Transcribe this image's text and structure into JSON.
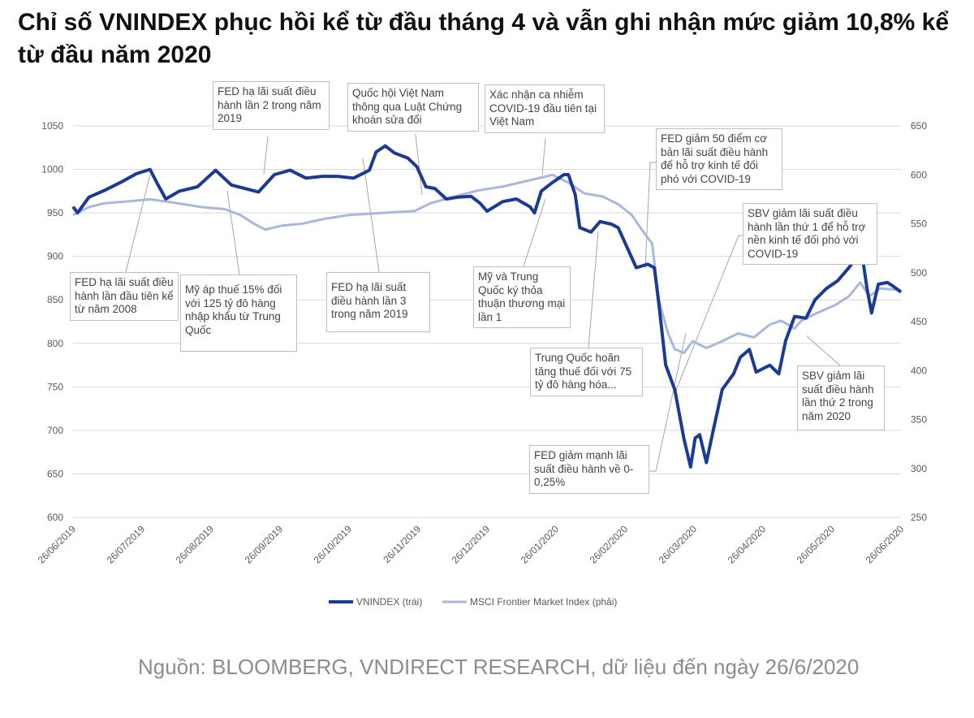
{
  "title": "Chỉ số VNINDEX phục hồi kể từ đầu tháng 4 và vẫn ghi nhận mức giảm 10,8% kể từ đầu năm 2020",
  "source": "Nguồn: BLOOMBERG, VNDIRECT RESEARCH, dữ liệu đến ngày 26/6/2020",
  "colors": {
    "vnindex": "#1b3a93",
    "msci": "#aab6dc",
    "grid": "#d9d9d9"
  },
  "chart_data": {
    "type": "line",
    "title": "",
    "grid": true,
    "legend_placement": "bottom",
    "y_left": {
      "ticks": [
        600,
        650,
        700,
        750,
        800,
        850,
        900,
        950,
        1000,
        1050
      ],
      "range": [
        600,
        1050
      ]
    },
    "y_right": {
      "ticks": [
        250,
        300,
        350,
        400,
        450,
        500,
        550,
        600,
        650
      ],
      "range": [
        250,
        650
      ]
    },
    "x_ticks": [
      "26/06/2019",
      "26/07/2019",
      "26/08/2019",
      "26/09/2019",
      "26/10/2019",
      "26/11/2019",
      "26/12/2019",
      "26/01/2020",
      "26/02/2020",
      "26/03/2020",
      "26/04/2020",
      "26/05/2020",
      "26/06/2020"
    ],
    "x_range": [
      "2019-06-26",
      "2020-06-26"
    ],
    "series": [
      {
        "name": "VNINDEX (trái)",
        "axis": "left",
        "points": [
          [
            "2019-06-26",
            957
          ],
          [
            "2019-06-28",
            950
          ],
          [
            "2019-07-03",
            968
          ],
          [
            "2019-07-10",
            976
          ],
          [
            "2019-07-17",
            985
          ],
          [
            "2019-07-24",
            995
          ],
          [
            "2019-07-30",
            1000
          ],
          [
            "2019-08-02",
            985
          ],
          [
            "2019-08-06",
            966
          ],
          [
            "2019-08-12",
            975
          ],
          [
            "2019-08-20",
            980
          ],
          [
            "2019-08-28",
            999
          ],
          [
            "2019-09-04",
            982
          ],
          [
            "2019-09-10",
            978
          ],
          [
            "2019-09-16",
            974
          ],
          [
            "2019-09-23",
            994
          ],
          [
            "2019-09-30",
            999
          ],
          [
            "2019-10-07",
            990
          ],
          [
            "2019-10-14",
            992
          ],
          [
            "2019-10-21",
            992
          ],
          [
            "2019-10-28",
            990
          ],
          [
            "2019-11-04",
            999
          ],
          [
            "2019-11-07",
            1020
          ],
          [
            "2019-11-11",
            1027
          ],
          [
            "2019-11-15",
            1019
          ],
          [
            "2019-11-21",
            1013
          ],
          [
            "2019-11-25",
            1003
          ],
          [
            "2019-11-29",
            980
          ],
          [
            "2019-12-03",
            978
          ],
          [
            "2019-12-08",
            966
          ],
          [
            "2019-12-13",
            968
          ],
          [
            "2019-12-19",
            969
          ],
          [
            "2019-12-23",
            961
          ],
          [
            "2019-12-26",
            952
          ],
          [
            "2020-01-02",
            963
          ],
          [
            "2020-01-08",
            966
          ],
          [
            "2020-01-14",
            957
          ],
          [
            "2020-01-16",
            950
          ],
          [
            "2020-01-19",
            975
          ],
          [
            "2020-01-24",
            985
          ],
          [
            "2020-01-29",
            994
          ],
          [
            "2020-01-31",
            994
          ],
          [
            "2020-02-03",
            971
          ],
          [
            "2020-02-05",
            933
          ],
          [
            "2020-02-10",
            928
          ],
          [
            "2020-02-14",
            940
          ],
          [
            "2020-02-19",
            937
          ],
          [
            "2020-02-22",
            933
          ],
          [
            "2020-02-26",
            910
          ],
          [
            "2020-03-01",
            887
          ],
          [
            "2020-03-06",
            891
          ],
          [
            "2020-03-09",
            887
          ],
          [
            "2020-03-11",
            845
          ],
          [
            "2020-03-14",
            775
          ],
          [
            "2020-03-18",
            747
          ],
          [
            "2020-03-22",
            691
          ],
          [
            "2020-03-25",
            658
          ],
          [
            "2020-03-27",
            691
          ],
          [
            "2020-03-29",
            695
          ],
          [
            "2020-04-01",
            663
          ],
          [
            "2020-04-04",
            700
          ],
          [
            "2020-04-08",
            747
          ],
          [
            "2020-04-13",
            765
          ],
          [
            "2020-04-16",
            784
          ],
          [
            "2020-04-20",
            793
          ],
          [
            "2020-04-23",
            767
          ],
          [
            "2020-04-29",
            775
          ],
          [
            "2020-05-03",
            765
          ],
          [
            "2020-05-06",
            803
          ],
          [
            "2020-05-10",
            831
          ],
          [
            "2020-05-15",
            829
          ],
          [
            "2020-05-19",
            850
          ],
          [
            "2020-05-24",
            863
          ],
          [
            "2020-05-29",
            872
          ],
          [
            "2020-06-03",
            887
          ],
          [
            "2020-06-07",
            901
          ],
          [
            "2020-06-09",
            899
          ],
          [
            "2020-06-11",
            863
          ],
          [
            "2020-06-13",
            835
          ],
          [
            "2020-06-16",
            868
          ],
          [
            "2020-06-20",
            870
          ],
          [
            "2020-06-23",
            865
          ],
          [
            "2020-06-26",
            859
          ]
        ]
      },
      {
        "name": "MSCI Frontier Market Index (phải)",
        "axis": "right",
        "points": [
          [
            "2019-06-26",
            559
          ],
          [
            "2019-07-03",
            567
          ],
          [
            "2019-07-10",
            571
          ],
          [
            "2019-07-21",
            573
          ],
          [
            "2019-07-30",
            575
          ],
          [
            "2019-08-11",
            571
          ],
          [
            "2019-08-22",
            567
          ],
          [
            "2019-09-01",
            565
          ],
          [
            "2019-09-08",
            559
          ],
          [
            "2019-09-14",
            550
          ],
          [
            "2019-09-19",
            544
          ],
          [
            "2019-09-26",
            548
          ],
          [
            "2019-10-05",
            550
          ],
          [
            "2019-10-15",
            555
          ],
          [
            "2019-10-26",
            559
          ],
          [
            "2019-11-09",
            561
          ],
          [
            "2019-11-24",
            563
          ],
          [
            "2019-12-01",
            571
          ],
          [
            "2019-12-12",
            578
          ],
          [
            "2019-12-22",
            584
          ],
          [
            "2020-01-02",
            588
          ],
          [
            "2020-01-13",
            594
          ],
          [
            "2020-01-24",
            600
          ],
          [
            "2020-01-31",
            592
          ],
          [
            "2020-02-07",
            581
          ],
          [
            "2020-02-15",
            578
          ],
          [
            "2020-02-22",
            570
          ],
          [
            "2020-02-28",
            559
          ],
          [
            "2020-03-04",
            542
          ],
          [
            "2020-03-08",
            530
          ],
          [
            "2020-03-11",
            472
          ],
          [
            "2020-03-15",
            438
          ],
          [
            "2020-03-18",
            422
          ],
          [
            "2020-03-22",
            418
          ],
          [
            "2020-03-26",
            430
          ],
          [
            "2020-04-01",
            423
          ],
          [
            "2020-04-08",
            430
          ],
          [
            "2020-04-15",
            438
          ],
          [
            "2020-04-22",
            434
          ],
          [
            "2020-04-29",
            447
          ],
          [
            "2020-05-04",
            451
          ],
          [
            "2020-05-10",
            443
          ],
          [
            "2020-05-13",
            451
          ],
          [
            "2020-05-20",
            459
          ],
          [
            "2020-05-28",
            467
          ],
          [
            "2020-06-03",
            476
          ],
          [
            "2020-06-08",
            490
          ],
          [
            "2020-06-12",
            476
          ],
          [
            "2020-06-17",
            484
          ],
          [
            "2020-06-26",
            482
          ]
        ]
      }
    ],
    "annotations": [
      "FED hạ lãi suất điều hành lần 2 trong năm 2019",
      "Quốc hội Việt Nam thông qua Luật Chứng khoán sửa đổi",
      "Xác nhận ca nhiễm COVID-19 đầu tiên tại Việt Nam",
      "FED giảm 50 điểm cơ bản lãi suất điều hành để hỗ trợ kinh tế đối phó với COVID-19",
      "SBV giảm lãi suất điều hành lần thứ 1 để hỗ trợ nền kinh tế đối phó với COVID-19",
      "FED hạ lãi suất điều hành lần đầu tiên kể từ năm 2008",
      "Mỹ áp thuế 15% đối với 125 tỷ đô hàng nhập khẩu từ Trung Quốc",
      "FED hạ lãi suất điều hành lần 3 trong năm 2019",
      "Mỹ và Trung Quốc ký thỏa thuận thương mại lần 1",
      "Trung Quốc hoãn tăng thuế đối với 75 tỷ đô hàng hóa...",
      "SBV giảm lãi suất điều hành lần thứ 2 trong năm 2020",
      "FED giảm mạnh lãi suất điều hành về 0-0,25%"
    ]
  }
}
